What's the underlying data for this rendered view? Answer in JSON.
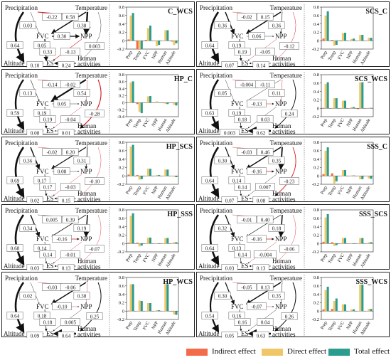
{
  "labels": {
    "precipitation": "Precipitation",
    "temperature": "Temperature",
    "fvc": "FVC",
    "npp": "NPP",
    "altitude": "Altitude",
    "es": "ES",
    "human": "Human",
    "activities": "activities"
  },
  "colors": {
    "indirect": "#f26b4a",
    "direct": "#f0c766",
    "total": "#2a9d8f",
    "negative_path": "#d7191c",
    "positive_path": "#111111"
  },
  "legend": {
    "indirect": "Indirect effect",
    "direct": "Direct effect",
    "total": "Total effect"
  },
  "chart_data": [
    {
      "type": "bar",
      "title": "C_WCS",
      "categories": [
        "Prep",
        "Temp",
        "FVC",
        "NPP",
        "Human",
        "Altitude"
      ],
      "ylim": [
        -0.2,
        0.8
      ],
      "series": [
        {
          "name": "Indirect effect",
          "values": [
            0.03,
            -0.21,
            0.02,
            0,
            0,
            -0.02
          ]
        },
        {
          "name": "Direct effect",
          "values": [
            0.6,
            -0.2,
            0.3,
            -0.13,
            0.25,
            -0.1
          ]
        },
        {
          "name": "Total effect",
          "values": [
            0.66,
            -0.2,
            0.36,
            -0.1,
            0.25,
            -0.06
          ]
        }
      ],
      "paths": {
        "pt": "-0.22",
        "ptt": "0.58",
        "pf": "0.03",
        "tf": "0.38",
        "fn": "0.30",
        "pn": "0.05",
        "fe": "0.33",
        "ne": "-0.13",
        "te": "0.003",
        "ae": "0.10",
        "he": "0.24",
        "pa": "0.64"
      }
    },
    {
      "type": "bar",
      "title": "SCS_C",
      "categories": [
        "Prep",
        "Temp",
        "FVC",
        "NPP",
        "Human",
        "Altitude"
      ],
      "ylim": [
        -0.2,
        0.8
      ],
      "series": [
        {
          "name": "Indirect effect",
          "values": [
            0.05,
            0.02,
            0.01,
            0,
            0,
            0
          ]
        },
        {
          "name": "Direct effect",
          "values": [
            0.6,
            -0.12,
            0.18,
            0.04,
            0.14,
            0.07
          ]
        },
        {
          "name": "Total effect",
          "values": [
            0.7,
            -0.1,
            0.19,
            0.05,
            0.14,
            0.07
          ]
        }
      ],
      "paths": {
        "pt": "-0.02",
        "ptt": "0.15",
        "pf": "0.36",
        "tf": "0.36",
        "fn": "0.06",
        "pn": "0.19",
        "fe": "0.19",
        "ne": "-0.05",
        "te": "-0.12",
        "ae": "0.07",
        "he": "0.14",
        "pa": "0.64"
      }
    },
    {
      "type": "bar",
      "title": "HP_C",
      "categories": [
        "Prep",
        "Temp",
        "FVC",
        "NPP",
        "Human",
        "Altitude"
      ],
      "ylim": [
        -0.4,
        0.8
      ],
      "series": [
        {
          "name": "Indirect effect",
          "values": [
            0.01,
            -0.04,
            0,
            0,
            -0.01,
            0
          ]
        },
        {
          "name": "Direct effect",
          "values": [
            0.58,
            -0.26,
            0.18,
            0.04,
            -0.03,
            -0.06
          ]
        },
        {
          "name": "Total effect",
          "values": [
            0.61,
            -0.3,
            0.19,
            0.01,
            -0.04,
            -0.08
          ]
        }
      ],
      "paths": {
        "pt": "-0.14",
        "ptt": "-0.02",
        "pf": "0.13",
        "tf": "0.54",
        "fn": "0.05",
        "pn": "0.19",
        "fe": "0.19",
        "ne": "-0.04",
        "te": "-0.28",
        "ae": "0.08",
        "he": "0.01",
        "pa": "0.59"
      }
    },
    {
      "type": "bar",
      "title": "SCS_WCS",
      "categories": [
        "Prep",
        "Temp",
        "FVC",
        "NPP",
        "Human",
        "Altitude"
      ],
      "ylim": [
        -0.2,
        0.8
      ],
      "series": [
        {
          "name": "Indirect effect",
          "values": [
            0.01,
            0,
            0,
            0,
            -0.02,
            0
          ]
        },
        {
          "name": "Direct effect",
          "values": [
            0.58,
            0.24,
            0.18,
            0.03,
            0.62,
            0.01
          ]
        },
        {
          "name": "Total effect",
          "values": [
            0.62,
            0.24,
            0.18,
            0.03,
            0.62,
            0.01
          ]
        }
      ],
      "paths": {
        "pt": "-0.004",
        "ptt": "-0.11",
        "pf": "0.05",
        "tf": "0.11",
        "fn": "-0.13",
        "pn": "0.19",
        "fe": "0.18",
        "ne": "0.03",
        "te": "0.24",
        "ae": "0.003",
        "he": "0.62",
        "pa": "0.63"
      }
    },
    {
      "type": "bar",
      "title": "HP_SCS",
      "categories": [
        "Prep",
        "Temp",
        "FVC",
        "NPP",
        "Human",
        "Altitude"
      ],
      "ylim": [
        -0.2,
        0.8
      ],
      "series": [
        {
          "name": "Indirect effect",
          "values": [
            0.03,
            0.02,
            0,
            0,
            0,
            0
          ]
        },
        {
          "name": "Direct effect",
          "values": [
            0.7,
            -0.09,
            0.17,
            0.02,
            0.15,
            -0.02
          ]
        },
        {
          "name": "Total effect",
          "values": [
            0.74,
            -0.08,
            0.17,
            0.02,
            0.15,
            -0.03
          ]
        }
      ],
      "paths": {
        "pt": "-0.02",
        "ptt": "0.20",
        "pf": "0.36",
        "tf": "0.31",
        "fn": "0.08",
        "pn": "0.17",
        "fe": "0.17",
        "ne": "-0.03",
        "te": "-0.10",
        "ae": "0.02",
        "he": "0.15",
        "pa": "0.69"
      }
    },
    {
      "type": "bar",
      "title": "SSS_C",
      "categories": [
        "Prep",
        "Temp",
        "FVC",
        "NPP",
        "Human",
        "Altitude"
      ],
      "ylim": [
        -0.2,
        0.8
      ],
      "series": [
        {
          "name": "Indirect effect",
          "values": [
            0.04,
            0.06,
            0,
            0,
            0,
            0
          ]
        },
        {
          "name": "Direct effect",
          "values": [
            0.6,
            -0.18,
            0.14,
            0.01,
            -0.08,
            -0.06
          ]
        },
        {
          "name": "Total effect",
          "values": [
            0.68,
            -0.13,
            0.14,
            0.01,
            -0.08,
            -0.07
          ]
        }
      ],
      "paths": {
        "pt": "-0.03",
        "ptt": "0.46",
        "pf": "0.30",
        "tf": "0.35",
        "fn": "-0.16",
        "pn": "0.14",
        "fe": "0.14",
        "ne": "0.007",
        "te": "-0.23",
        "ae": "0.07",
        "he": "0.08",
        "pa": "0.64"
      }
    },
    {
      "type": "bar",
      "title": "HP_SSS",
      "categories": [
        "Prep",
        "Temp",
        "FVC",
        "NPP",
        "Human",
        "Altitude"
      ],
      "ylim": [
        -0.2,
        0.8
      ],
      "series": [
        {
          "name": "Indirect effect",
          "values": [
            0.02,
            0.02,
            0,
            0,
            0,
            0
          ]
        },
        {
          "name": "Direct effect",
          "values": [
            0.66,
            -0.07,
            0.14,
            -0.01,
            0.13,
            0.03
          ]
        },
        {
          "name": "Total effect",
          "values": [
            0.72,
            -0.05,
            0.14,
            -0.01,
            0.13,
            0.03
          ]
        }
      ],
      "paths": {
        "pt": "0.005",
        "ptt": "0.39",
        "pf": "0.34",
        "tf": "0.19",
        "fn": "-0.16",
        "pn": "0.14",
        "fe": "0.14",
        "ne": "-0.01",
        "te": "-0.07",
        "ae": "0.03",
        "he": "0.13",
        "pa": "0.68"
      }
    },
    {
      "type": "bar",
      "title": "SSS_SCS",
      "categories": [
        "Prep",
        "Temp",
        "FVC",
        "NPP",
        "Human",
        "Altitude"
      ],
      "ylim": [
        -0.2,
        0.8
      ],
      "series": [
        {
          "name": "Indirect effect",
          "values": [
            0.04,
            0.03,
            0,
            0,
            0,
            0
          ]
        },
        {
          "name": "Direct effect",
          "values": [
            0.62,
            -0.06,
            0.13,
            -0.01,
            0.13,
            0.03
          ]
        },
        {
          "name": "Total effect",
          "values": [
            0.7,
            -0.04,
            0.13,
            -0.01,
            0.13,
            0.03
          ]
        }
      ],
      "paths": {
        "pt": "-0.01",
        "ptt": "0.40",
        "pf": "0.32",
        "tf": "0.18",
        "fn": "-0.16",
        "pn": "0.13",
        "fe": "0.14",
        "ne": "-0.004",
        "te": "-0.06",
        "ae": "0.03",
        "he": "0.13",
        "pa": "0.64"
      }
    },
    {
      "type": "bar",
      "title": "HP_WCS",
      "categories": [
        "Prep",
        "Temp",
        "FVC",
        "NPP",
        "Human",
        "Altitude"
      ],
      "ylim": [
        -0.2,
        0.8
      ],
      "series": [
        {
          "name": "Indirect effect",
          "values": [
            0.01,
            0,
            0,
            0,
            0,
            -0.01
          ]
        },
        {
          "name": "Direct effect",
          "values": [
            0.64,
            0.25,
            0.19,
            0.02,
            0.64,
            -0.08
          ]
        },
        {
          "name": "Total effect",
          "values": [
            0.64,
            0.24,
            0.19,
            0.02,
            0.64,
            -0.09
          ]
        }
      ],
      "paths": {
        "pt": "-0.03",
        "ptt": "-0.06",
        "pf": "0.02",
        "tf": "0.38",
        "fn": "-0.10",
        "pn": "0.18",
        "fe": "0.18",
        "ne": "0.005",
        "te": "0.25",
        "ae": "0.09",
        "he": "0.64",
        "pa": "0.64"
      }
    },
    {
      "type": "bar",
      "title": "SSS_WCS",
      "categories": [
        "Prep",
        "Temp",
        "FVC",
        "NPP",
        "Human",
        "Altitude"
      ],
      "ylim": [
        -0.2,
        0.8
      ],
      "series": [
        {
          "name": "Indirect effect",
          "values": [
            0.04,
            0.05,
            0,
            0,
            0,
            0
          ]
        },
        {
          "name": "Direct effect",
          "values": [
            0.5,
            0.24,
            0.16,
            0.04,
            0.63,
            0.05
          ]
        },
        {
          "name": "Total effect",
          "values": [
            0.58,
            0.3,
            0.16,
            0.04,
            0.63,
            0.05
          ]
        }
      ],
      "paths": {
        "pt": "-0.05",
        "ptt": "0.13",
        "pf": "0.30",
        "tf": "0.35",
        "fn": "-0.07",
        "pn": "0.16",
        "fe": "0.16",
        "ne": "0.04",
        "te": "0.26",
        "ae": "0.05",
        "he": "0.63",
        "pa": "0.54"
      }
    }
  ]
}
